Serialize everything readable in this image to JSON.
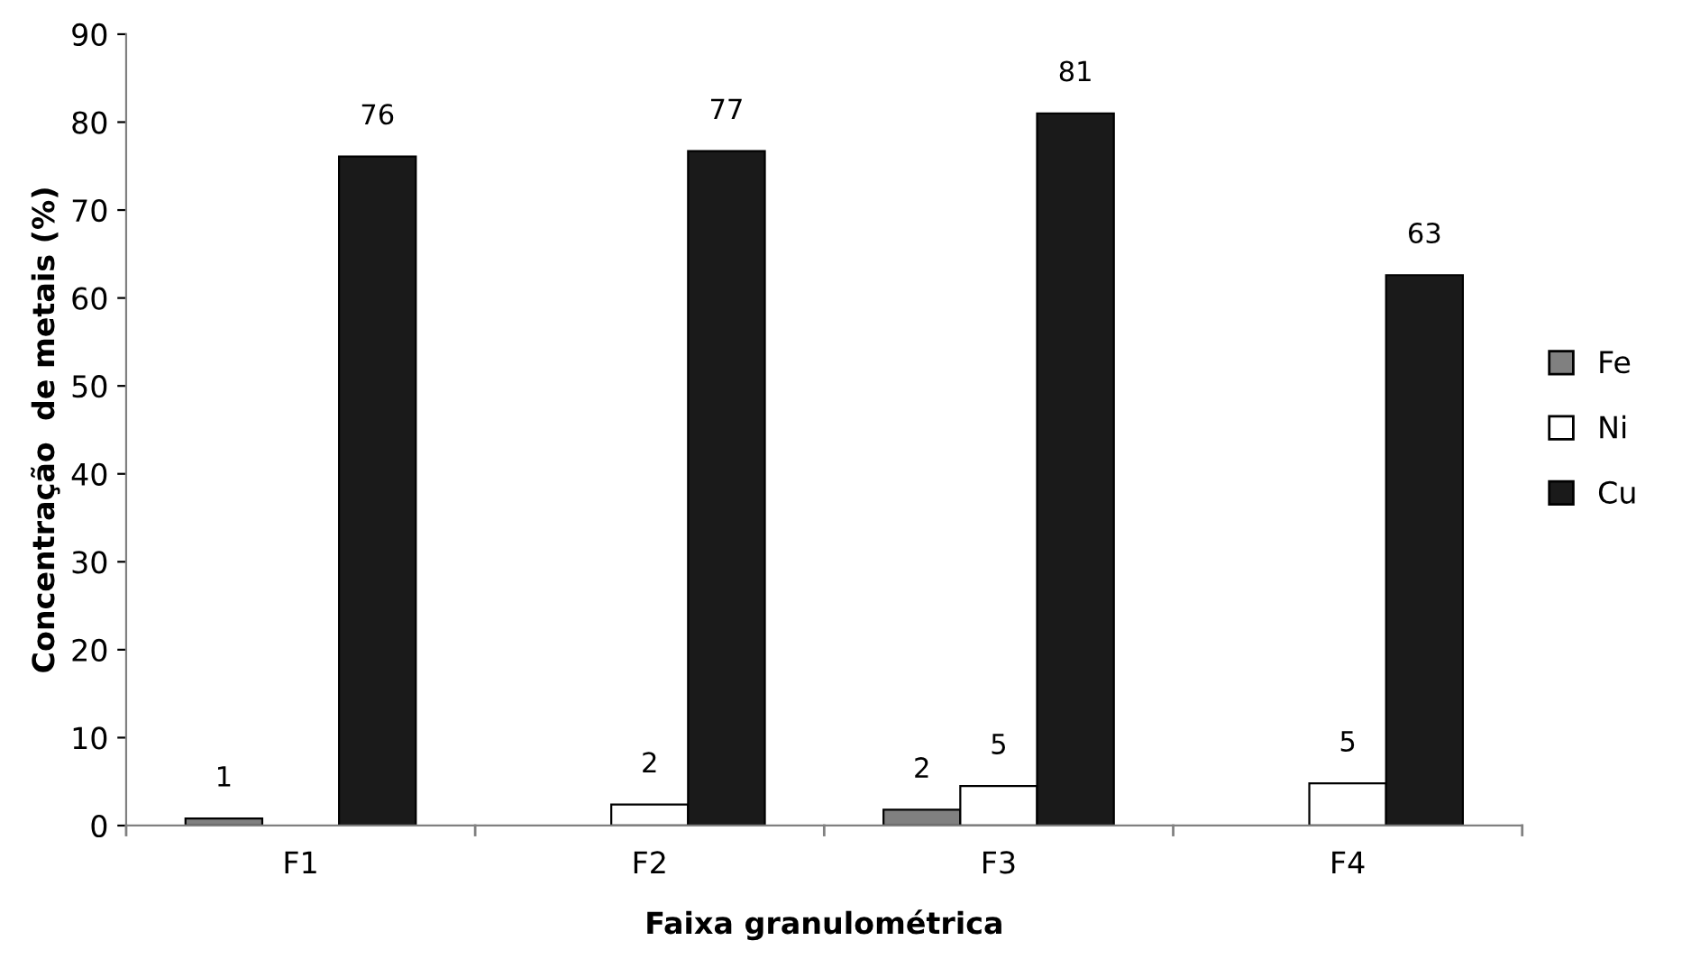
{
  "chart_data": {
    "type": "bar",
    "xlabel": "Faixa granulométrica",
    "ylabel": "Concentração  de metais (%)",
    "categories": [
      "F1",
      "F2",
      "F3",
      "F4"
    ],
    "series": [
      {
        "name": "Fe",
        "color": "#808080",
        "values": [
          0.8,
          null,
          1.8,
          null
        ],
        "value_labels": [
          "1",
          null,
          "2",
          null
        ]
      },
      {
        "name": "Ni",
        "color": "#ffffff",
        "values": [
          null,
          2.4,
          4.5,
          4.8
        ],
        "value_labels": [
          null,
          "2",
          "5",
          "5"
        ]
      },
      {
        "name": "Cu",
        "color": "#1a1a1a",
        "values": [
          76.1,
          76.7,
          81,
          62.6
        ],
        "value_labels": [
          "76",
          "77",
          "81",
          "63"
        ]
      }
    ],
    "ylim": [
      0,
      90
    ],
    "yticks": [
      0,
      10,
      20,
      30,
      40,
      50,
      60,
      70,
      80,
      90
    ],
    "grid": false,
    "legend": "right"
  }
}
